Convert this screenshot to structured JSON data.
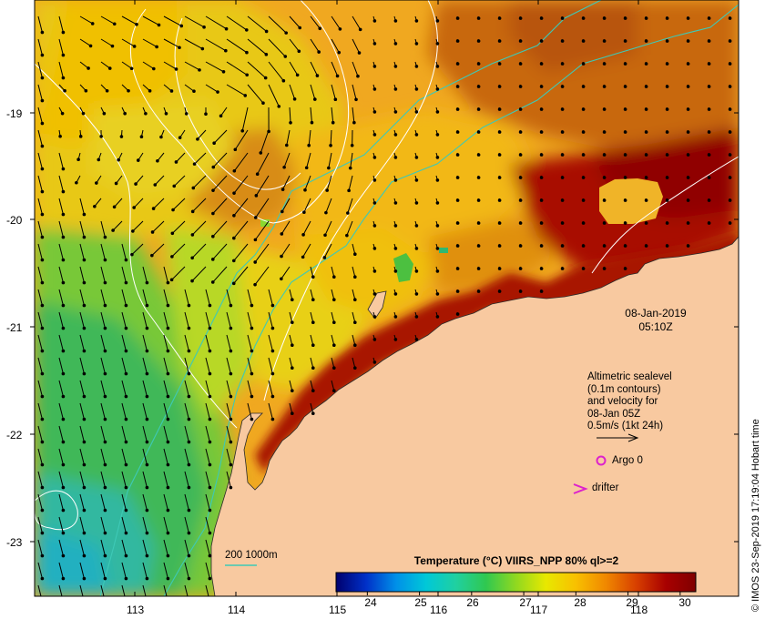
{
  "map": {
    "lon_ticks": [
      "113",
      "114",
      "115",
      "116",
      "117",
      "118"
    ],
    "lat_ticks": [
      "-19",
      "-20",
      "-21",
      "-22",
      "-23"
    ],
    "colors": {
      "land": "#f8c9a0",
      "coast_line": "#2a2a2a",
      "isobath": "#3ec9b6",
      "contour": "#ffffff",
      "vector": "#000000",
      "marker": "#dd22cc"
    },
    "arrow_field": "ocean surface current vectors (black arrows) over SST"
  },
  "timestamp": {
    "date": "08-Jan-2019",
    "time": "05:10Z"
  },
  "legend": {
    "lines": [
      "Altimetric sealevel",
      "(0.1m contours)",
      "and velocity for",
      "08-Jan 05Z",
      "0.5m/s  (1kt 24h)"
    ],
    "argo": "Argo 0",
    "drifter": "drifter",
    "isobath": "200  1000m"
  },
  "colorbar": {
    "title": "Temperature (°C) VIIRS_NPP 80% ql>=2",
    "ticks": [
      "24",
      "25",
      "26",
      "27",
      "28",
      "29",
      "30"
    ],
    "range": [
      23.4,
      30.3
    ],
    "stops": [
      "#00006e",
      "#0030c8",
      "#0090e8",
      "#00c8d8",
      "#20d0a0",
      "#30c850",
      "#90d820",
      "#e8e800",
      "#f8c000",
      "#f08800",
      "#d84000",
      "#a80000",
      "#800000"
    ]
  },
  "credit": "© IMOS 23-Sep-2019 17:19:04 Hobart time"
}
